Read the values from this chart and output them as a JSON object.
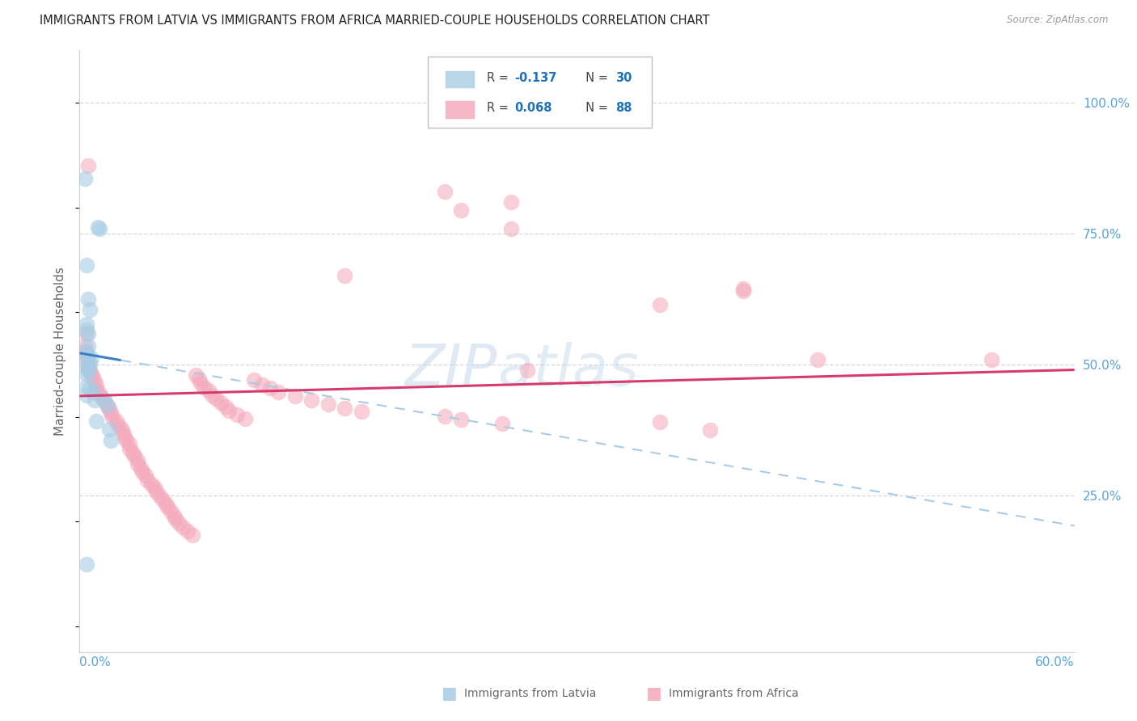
{
  "title": "IMMIGRANTS FROM LATVIA VS IMMIGRANTS FROM AFRICA MARRIED-COUPLE HOUSEHOLDS CORRELATION CHART",
  "source": "Source: ZipAtlas.com",
  "ylabel": "Married-couple Households",
  "right_ytick_labels": [
    "25.0%",
    "50.0%",
    "75.0%",
    "100.0%"
  ],
  "right_ytick_vals": [
    0.25,
    0.5,
    0.75,
    1.0
  ],
  "x_left_label": "0.0%",
  "x_right_label": "60.0%",
  "xlim": [
    0.0,
    0.6
  ],
  "ylim": [
    -0.05,
    1.1
  ],
  "legend_r1": "-0.137",
  "legend_n1": "30",
  "legend_r2": "0.068",
  "legend_n2": "88",
  "legend_label1": "Immigrants from Latvia",
  "legend_label2": "Immigrants from Africa",
  "watermark_zip": "ZIP",
  "watermark_atlas": "atlas",
  "blue_color": "#a8cce4",
  "pink_color": "#f4a7b9",
  "trend_blue_solid": "#3b7fc4",
  "trend_blue_dashed": "#a8cce4",
  "trend_pink_solid": "#d63b6e",
  "background_color": "#ffffff",
  "grid_color": "#d8d8d8",
  "axis_label_color": "#5ba3d9",
  "title_color": "#222222",
  "title_fontsize": 10.5,
  "source_fontsize": 8.5,
  "tick_fontsize": 11,
  "ylabel_fontsize": 11,
  "legend_fontsize": 10.5,
  "blue_x": [
    0.003,
    0.011,
    0.012,
    0.004,
    0.005,
    0.006,
    0.004,
    0.004,
    0.005,
    0.005,
    0.004,
    0.004,
    0.007,
    0.005,
    0.006,
    0.004,
    0.005,
    0.005,
    0.004,
    0.004,
    0.006,
    0.008,
    0.004,
    0.009,
    0.015,
    0.017,
    0.01,
    0.018,
    0.019,
    0.004
  ],
  "blue_y": [
    0.855,
    0.762,
    0.76,
    0.69,
    0.625,
    0.605,
    0.578,
    0.567,
    0.558,
    0.535,
    0.525,
    0.518,
    0.512,
    0.506,
    0.502,
    0.498,
    0.492,
    0.488,
    0.482,
    0.458,
    0.456,
    0.447,
    0.442,
    0.432,
    0.432,
    0.422,
    0.392,
    0.376,
    0.355,
    0.118
  ],
  "pink_x": [
    0.004,
    0.003,
    0.003,
    0.004,
    0.004,
    0.005,
    0.005,
    0.006,
    0.007,
    0.008,
    0.009,
    0.01,
    0.01,
    0.012,
    0.013,
    0.015,
    0.017,
    0.018,
    0.019,
    0.02,
    0.022,
    0.023,
    0.025,
    0.026,
    0.027,
    0.028,
    0.03,
    0.03,
    0.032,
    0.033,
    0.035,
    0.035,
    0.037,
    0.038,
    0.04,
    0.041,
    0.043,
    0.045,
    0.046,
    0.048,
    0.05,
    0.052,
    0.053,
    0.055,
    0.057,
    0.058,
    0.06,
    0.062,
    0.065,
    0.068,
    0.07,
    0.072,
    0.073,
    0.075,
    0.078,
    0.08,
    0.082,
    0.085,
    0.088,
    0.09,
    0.095,
    0.1,
    0.105,
    0.11,
    0.115,
    0.12,
    0.13,
    0.14,
    0.15,
    0.16,
    0.17,
    0.22,
    0.23,
    0.255,
    0.22,
    0.26,
    0.23,
    0.16,
    0.4,
    0.005,
    0.35,
    0.4,
    0.445,
    0.55,
    0.27,
    0.26,
    0.35,
    0.38
  ],
  "pink_y": [
    0.558,
    0.535,
    0.525,
    0.518,
    0.512,
    0.506,
    0.498,
    0.49,
    0.482,
    0.476,
    0.468,
    0.46,
    0.452,
    0.445,
    0.438,
    0.43,
    0.422,
    0.415,
    0.408,
    0.4,
    0.392,
    0.385,
    0.378,
    0.37,
    0.362,
    0.355,
    0.348,
    0.34,
    0.332,
    0.325,
    0.318,
    0.31,
    0.302,
    0.295,
    0.288,
    0.28,
    0.272,
    0.265,
    0.258,
    0.25,
    0.242,
    0.235,
    0.228,
    0.22,
    0.212,
    0.205,
    0.198,
    0.19,
    0.182,
    0.175,
    0.48,
    0.472,
    0.465,
    0.457,
    0.45,
    0.442,
    0.435,
    0.427,
    0.42,
    0.412,
    0.405,
    0.397,
    0.47,
    0.462,
    0.455,
    0.447,
    0.44,
    0.432,
    0.425,
    0.417,
    0.41,
    0.402,
    0.395,
    0.387,
    0.83,
    0.81,
    0.795,
    0.67,
    0.645,
    0.88,
    0.615,
    0.64,
    0.51,
    0.51,
    0.49,
    0.76,
    0.39,
    0.375
  ],
  "blue_trend_x0": 0.0,
  "blue_trend_y0": 0.522,
  "blue_trend_x_solid_end": 0.025,
  "blue_trend_slope": -0.55,
  "pink_trend_x0": 0.0,
  "pink_trend_y0": 0.44,
  "pink_trend_x_end": 0.6,
  "pink_trend_y_end": 0.49
}
